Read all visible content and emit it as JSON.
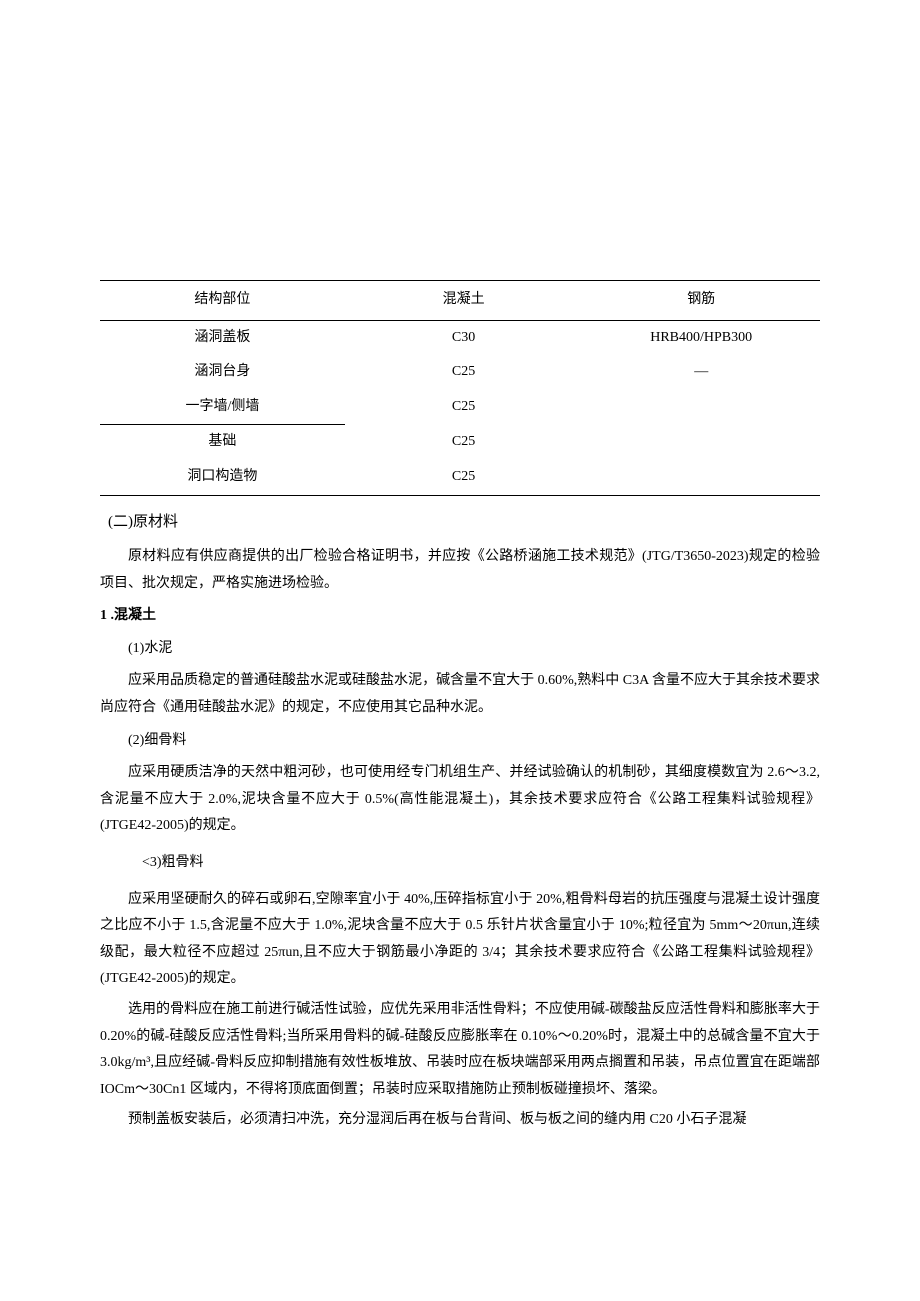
{
  "table": {
    "headers": [
      "结构部位",
      "混凝土",
      "钢筋"
    ],
    "rows": [
      [
        "涵洞盖板",
        "C30",
        "HRB400/HPB300"
      ],
      [
        "涵洞台身",
        "C25",
        "—"
      ],
      [
        "一字墙/侧墙",
        "C25",
        ""
      ],
      [
        "基础",
        "C25",
        ""
      ],
      [
        "洞口构造物",
        "C25",
        ""
      ]
    ]
  },
  "section2_title": "(二)原材料",
  "intro_para": "原材料应有供应商提供的出厂检验合格证明书，并应按《公路桥涵施工技术规范》(JTG/T3650-2023)规定的检验项目、批次规定，严格实施进场检验。",
  "item1_title": "1 .混凝土",
  "item1_1_label": "(1)水泥",
  "item1_1_para": "应采用品质稳定的普通硅酸盐水泥或硅酸盐水泥，碱含量不宜大于 0.60%,熟料中 C3A 含量不应大于其余技术要求尚应符合《通用硅酸盐水泥》的规定，不应使用其它品种水泥。",
  "item1_2_label": "(2)细骨料",
  "item1_2_para": "应采用硬质洁净的天然中粗河砂，也可使用经专门机组生产、并经试验确认的机制砂，其细度模数宜为 2.6～3.2,含泥量不应大于 2.0%,泥块含量不应大于 0.5%(高性能混凝土)，其余技术要求应符合《公路工程集料试验规程》(JTGE42-2005)的规定。",
  "item1_3_label": "<3)粗骨料",
  "item1_3_para1": "应采用坚硬耐久的碎石或卵石,空隙率宜小于 40%,压碎指标宜小于 20%,粗骨料母岩的抗压强度与混凝土设计强度之比应不小于 1.5,含泥量不应大于 1.0%,泥块含量不应大于 0.5 乐针片状含量宜小于 10%;粒径宜为 5mm～20πun,连续级配，最大粒径不应超过 25πun,且不应大于钢筋最小净距的 3/4；其余技术要求应符合《公路工程集料试验规程》(JTGE42-2005)的规定。",
  "item1_3_para2": "选用的骨料应在施工前进行碱活性试验，应优先采用非活性骨料；不应使用碱-碳酸盐反应活性骨料和膨胀率大于 0.20%的碱-硅酸反应活性骨料;当所采用骨料的碱-硅酸反应膨胀率在 0.10%～0.20%时，混凝土中的总碱含量不宜大于 3.0kg/m³,且应经碱-骨料反应抑制措施有效性板堆放、吊装时应在板块端部采用两点搁置和吊装，吊点位置宜在距端部 IOCm～30Cn1 区域内，不得将顶底面倒置；吊装时应采取措施防止预制板碰撞损坏、落梁。",
  "item1_3_para3": "预制盖板安装后，必须清扫冲洗，充分湿润后再在板与台背间、板与板之间的缝内用 C20 小石子混凝"
}
